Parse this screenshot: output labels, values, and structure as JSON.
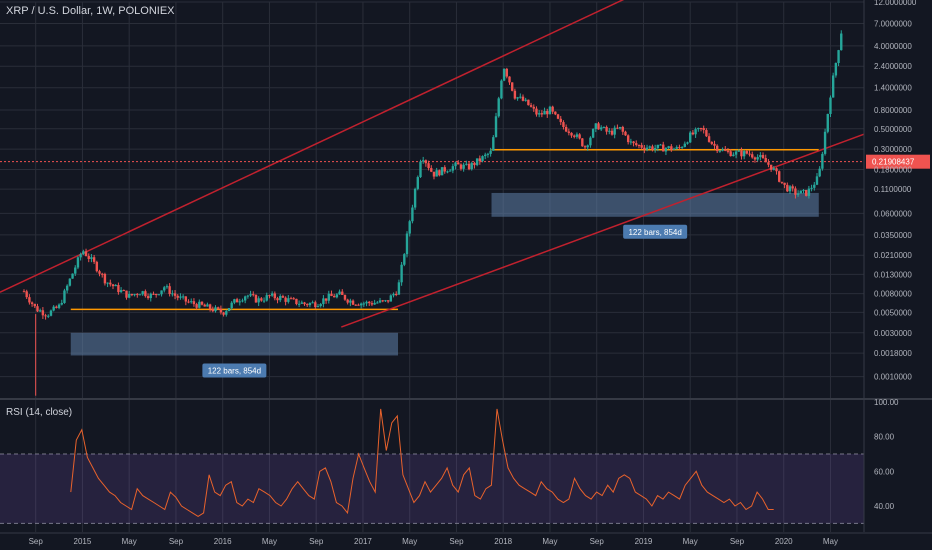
{
  "chart_data": [
    {
      "type": "candlestick",
      "title": "XRP / U.S. Dollar, 1W, POLONIEX",
      "y_scale": "log",
      "ylim": [
        0.0006,
        12.0
      ],
      "y_ticks": [
        "12.0000000",
        "7.0000000",
        "4.0000000",
        "2.4000000",
        "1.4000000",
        "0.8000000",
        "0.5000000",
        "0.3000000",
        "0.1800000",
        "0.1100000",
        "0.0600000",
        "0.0350000",
        "0.0210000",
        "0.0130000",
        "0.0080000",
        "0.0050000",
        "0.0030000",
        "0.0018000",
        "0.0010000"
      ],
      "y_tick_values": [
        12.0,
        7.0,
        4.0,
        2.4,
        1.4,
        0.8,
        0.5,
        0.3,
        0.18,
        0.11,
        0.06,
        0.035,
        0.021,
        0.013,
        0.008,
        0.005,
        0.003,
        0.0018,
        0.001
      ],
      "current_price_label": "0.21908437",
      "current_price": 0.219,
      "x_ticks": [
        "Sep",
        "2015",
        "May",
        "Sep",
        "2016",
        "May",
        "Sep",
        "2017",
        "May",
        "Sep",
        "2018",
        "May",
        "Sep",
        "2019",
        "May",
        "Sep",
        "2020",
        "May"
      ],
      "x_tick_dates": [
        "2014-09",
        "2015-01",
        "2015-05",
        "2015-09",
        "2016-01",
        "2016-05",
        "2016-09",
        "2017-01",
        "2017-05",
        "2017-09",
        "2018-01",
        "2018-05",
        "2018-09",
        "2019-01",
        "2019-05",
        "2019-09",
        "2020-01",
        "2020-05"
      ],
      "price_path": [
        [
          "2014-08",
          0.0085
        ],
        [
          "2014-09",
          0.0055
        ],
        [
          "2014-10",
          0.0048
        ],
        [
          "2014-11",
          0.0058
        ],
        [
          "2014-12",
          0.012
        ],
        [
          "2015-01",
          0.024
        ],
        [
          "2015-02",
          0.017
        ],
        [
          "2015-03",
          0.011
        ],
        [
          "2015-04",
          0.009
        ],
        [
          "2015-05",
          0.0075
        ],
        [
          "2015-06",
          0.0085
        ],
        [
          "2015-07",
          0.0075
        ],
        [
          "2015-08",
          0.0095
        ],
        [
          "2015-09",
          0.0075
        ],
        [
          "2015-10",
          0.0065
        ],
        [
          "2015-11",
          0.006
        ],
        [
          "2015-12",
          0.0055
        ],
        [
          "2016-01",
          0.005
        ],
        [
          "2016-02",
          0.0065
        ],
        [
          "2016-03",
          0.0078
        ],
        [
          "2016-04",
          0.0068
        ],
        [
          "2016-05",
          0.0075
        ],
        [
          "2016-06",
          0.0072
        ],
        [
          "2016-07",
          0.0066
        ],
        [
          "2016-08",
          0.0062
        ],
        [
          "2016-09",
          0.0063
        ],
        [
          "2016-10",
          0.0073
        ],
        [
          "2016-11",
          0.0078
        ],
        [
          "2016-12",
          0.0066
        ],
        [
          "2017-01",
          0.0063
        ],
        [
          "2017-02",
          0.0064
        ],
        [
          "2017-03",
          0.0065
        ],
        [
          "2017-04",
          0.009
        ],
        [
          "2017-05",
          0.05
        ],
        [
          "2017-06",
          0.27
        ],
        [
          "2017-07",
          0.16
        ],
        [
          "2017-08",
          0.18
        ],
        [
          "2017-09",
          0.2
        ],
        [
          "2017-10",
          0.19
        ],
        [
          "2017-11",
          0.23
        ],
        [
          "2017-12",
          0.28
        ],
        [
          "2018-01",
          2.5
        ],
        [
          "2018-02",
          1.15
        ],
        [
          "2018-03",
          0.95
        ],
        [
          "2018-04",
          0.7
        ],
        [
          "2018-05",
          0.8
        ],
        [
          "2018-06",
          0.54
        ],
        [
          "2018-07",
          0.45
        ],
        [
          "2018-08",
          0.32
        ],
        [
          "2018-09",
          0.55
        ],
        [
          "2018-10",
          0.45
        ],
        [
          "2018-11",
          0.5
        ],
        [
          "2018-12",
          0.34
        ],
        [
          "2019-01",
          0.32
        ],
        [
          "2019-02",
          0.31
        ],
        [
          "2019-03",
          0.31
        ],
        [
          "2019-04",
          0.3
        ],
        [
          "2019-05",
          0.42
        ],
        [
          "2019-06",
          0.5
        ],
        [
          "2019-07",
          0.33
        ],
        [
          "2019-08",
          0.28
        ],
        [
          "2019-09",
          0.27
        ],
        [
          "2019-10",
          0.27
        ],
        [
          "2019-11",
          0.24
        ],
        [
          "2019-12",
          0.19
        ],
        [
          "2020-01",
          0.12
        ],
        [
          "2020-02",
          0.1
        ],
        [
          "2020-03",
          0.1
        ],
        [
          "2020-04",
          0.15
        ],
        [
          "2020-05",
          1.2
        ],
        [
          "2020-06",
          6.5
        ]
      ],
      "annotations": [
        {
          "type": "range",
          "label": "122 bars, 854d",
          "from": "2014-12",
          "to": "2017-04",
          "price_from": 0.0017,
          "price_to": 0.003
        },
        {
          "type": "range",
          "label": "122 bars, 854d",
          "from": "2017-12",
          "to": "2020-04",
          "price_from": 0.055,
          "price_to": 0.1
        },
        {
          "type": "level",
          "from": "2014-12",
          "to": "2017-04",
          "price": 0.0054
        },
        {
          "type": "level",
          "from": "2017-12",
          "to": "2020-04",
          "price": 0.295
        }
      ],
      "colors": {
        "up": "#26a69a",
        "down": "#ef5350",
        "channel": "#c0212e",
        "level": "#ff9800",
        "range": "#5e7fa8",
        "last_price": "#ef5350"
      }
    },
    {
      "type": "line",
      "title": "RSI (14, close)",
      "ylim": [
        25,
        100
      ],
      "y_ticks": [
        "100.00",
        "80.00",
        "60.00",
        "40.00"
      ],
      "y_tick_values": [
        100,
        80,
        60,
        40
      ],
      "band": [
        30,
        70
      ],
      "series": [
        {
          "values": [
            48,
            78,
            84,
            68,
            62,
            56,
            52,
            48,
            46,
            42,
            40,
            38,
            50,
            46,
            44,
            42,
            40,
            38,
            48,
            45,
            40,
            38,
            36,
            34,
            36,
            58,
            48,
            46,
            52,
            54,
            42,
            40,
            44,
            42,
            50,
            48,
            46,
            42,
            40,
            44,
            50,
            54,
            50,
            46,
            44,
            60,
            62,
            54,
            42,
            40,
            36,
            56,
            70,
            62,
            54,
            48,
            96,
            72,
            88,
            92,
            58,
            50,
            42,
            46,
            54,
            48,
            52,
            56,
            62,
            52,
            48,
            58,
            62,
            46,
            44,
            50,
            52,
            96,
            78,
            62,
            56,
            52,
            50,
            48,
            46,
            54,
            50,
            48,
            44,
            42,
            44,
            56,
            50,
            46,
            44,
            48,
            46,
            52,
            48,
            56,
            58,
            56,
            48,
            46,
            44,
            40,
            46,
            44,
            48,
            46,
            44,
            52,
            56,
            60,
            52,
            48,
            46,
            44,
            42,
            44,
            40,
            42,
            38,
            40,
            48,
            44,
            38,
            38
          ]
        }
      ],
      "colors": {
        "line": "#e8622c",
        "band": "#7e57c2"
      }
    }
  ]
}
